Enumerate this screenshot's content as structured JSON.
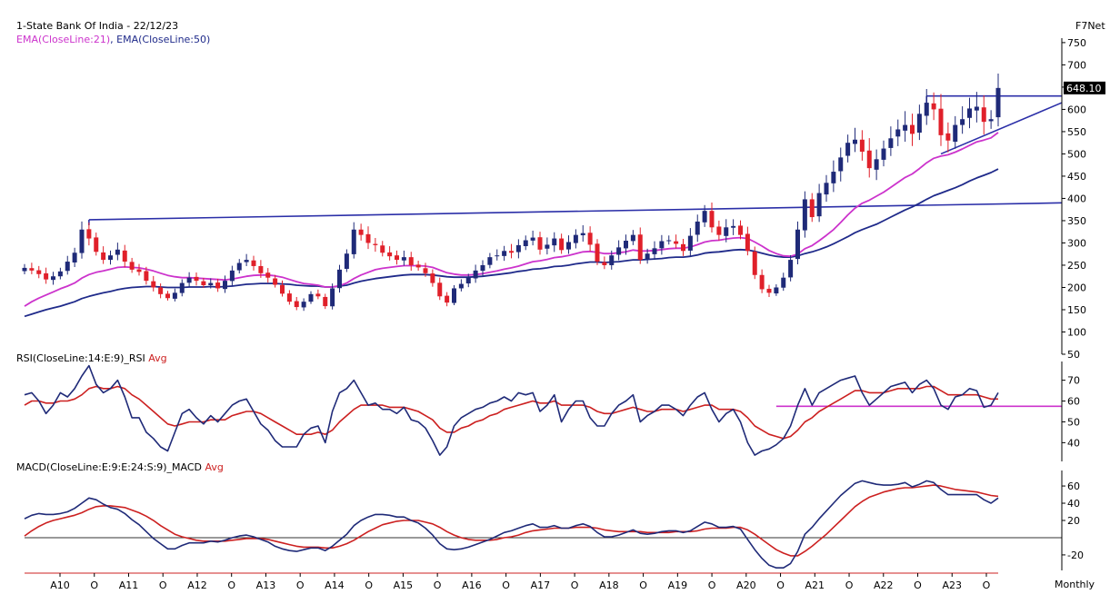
{
  "header": {
    "title": "1-State Bank Of India - 22/12/23",
    "indicator_ema21": "EMA(CloseLine:21)",
    "indicator_ema50": "EMA(CloseLine:50)",
    "separator": ", ",
    "brand": "F7Net",
    "rsi_label": "RSI(CloseLine:14:E:9)_RSI",
    "rsi_avg_label": "Avg",
    "macd_label": "MACD(CloseLine:E:9:E:24:S:9)_MACD",
    "macd_avg_label": "Avg",
    "timeframe": "Monthly"
  },
  "colors": {
    "up_candle": "#1f2a78",
    "down_candle": "#e0202a",
    "ema21": "#cc33cc",
    "ema50": "#1f2a8a",
    "trendline": "#2b2fa8",
    "rsi_line": "#1f2a78",
    "rsi_avg": "#cc2020",
    "macd_line": "#1f2a78",
    "macd_avg": "#cc2020",
    "ema21_label": "#cc33cc",
    "ema50_label": "#1f2a8a"
  },
  "chart_data": [
    {
      "type": "candlestick",
      "panel": "price",
      "y_ticks": [
        50,
        100,
        150,
        200,
        250,
        300,
        350,
        400,
        450,
        500,
        550,
        600,
        650,
        700,
        750
      ],
      "ylim": [
        50,
        760
      ],
      "last_price_label": "648.10",
      "x_tick_labels": [
        "A10",
        "O",
        "A11",
        "O",
        "A12",
        "O",
        "A13",
        "O",
        "A14",
        "O",
        "A15",
        "O",
        "A16",
        "O",
        "A17",
        "O",
        "A18",
        "O",
        "A19",
        "O",
        "A20",
        "O",
        "A21",
        "O",
        "A22",
        "O",
        "A23",
        "O"
      ],
      "close_series": [
        244,
        238,
        230,
        218,
        225,
        236,
        258,
        278,
        330,
        310,
        280,
        262,
        272,
        285,
        258,
        240,
        235,
        215,
        200,
        185,
        176,
        188,
        210,
        222,
        215,
        205,
        210,
        198,
        215,
        238,
        255,
        262,
        248,
        232,
        222,
        206,
        186,
        168,
        156,
        168,
        185,
        180,
        158,
        198,
        240,
        276,
        330,
        318,
        300,
        295,
        278,
        270,
        262,
        268,
        250,
        245,
        232,
        210,
        180,
        166,
        198,
        208,
        222,
        238,
        250,
        268,
        272,
        282,
        278,
        295,
        306,
        312,
        285,
        296,
        310,
        284,
        302,
        318,
        322,
        296,
        258,
        250,
        272,
        290,
        305,
        318,
        262,
        276,
        288,
        304,
        306,
        298,
        282,
        316,
        348,
        372,
        335,
        318,
        335,
        338,
        318,
        282,
        228,
        196,
        188,
        200,
        222,
        262,
        330,
        398,
        358,
        412,
        435,
        460,
        492,
        525,
        532,
        505,
        468,
        488,
        512,
        535,
        555,
        565,
        545,
        590,
        615,
        600,
        542,
        530,
        565,
        578,
        602,
        606,
        572,
        578,
        648.1
      ],
      "ema21": [
        158,
        168,
        176,
        183,
        190,
        197,
        203,
        210,
        221,
        229,
        234,
        237,
        241,
        245,
        246,
        245,
        244,
        241,
        237,
        232,
        227,
        224,
        222,
        222,
        221,
        220,
        219,
        218,
        217,
        219,
        222,
        225,
        227,
        228,
        228,
        226,
        223,
        218,
        213,
        209,
        207,
        205,
        201,
        201,
        204,
        210,
        220,
        228,
        234,
        240,
        243,
        245,
        247,
        249,
        249,
        249,
        248,
        245,
        239,
        233,
        230,
        228,
        228,
        229,
        231,
        234,
        237,
        241,
        244,
        248,
        253,
        258,
        260,
        263,
        267,
        269,
        272,
        276,
        280,
        281,
        279,
        276,
        276,
        278,
        280,
        284,
        282,
        282,
        283,
        285,
        287,
        288,
        288,
        291,
        296,
        302,
        305,
        306,
        309,
        311,
        312,
        310,
        302,
        293,
        283,
        276,
        271,
        270,
        275,
        287,
        294,
        305,
        317,
        330,
        346,
        363,
        378,
        389,
        396,
        405,
        414,
        425,
        436,
        447,
        455,
        467,
        480,
        490,
        495,
        498,
        504,
        511,
        519,
        527,
        531,
        536,
        548
      ],
      "ema50": [
        135,
        140,
        145,
        150,
        154,
        158,
        163,
        168,
        175,
        180,
        184,
        188,
        191,
        195,
        198,
        200,
        201,
        202,
        202,
        201,
        200,
        200,
        200,
        201,
        201,
        201,
        202,
        201,
        202,
        203,
        205,
        207,
        208,
        209,
        209,
        209,
        208,
        207,
        205,
        204,
        203,
        203,
        201,
        201,
        203,
        205,
        210,
        214,
        217,
        220,
        222,
        224,
        226,
        228,
        229,
        229,
        229,
        228,
        226,
        224,
        223,
        223,
        223,
        224,
        225,
        227,
        229,
        231,
        233,
        236,
        238,
        241,
        242,
        244,
        247,
        248,
        250,
        253,
        255,
        257,
        257,
        256,
        257,
        258,
        260,
        262,
        262,
        263,
        264,
        265,
        267,
        268,
        268,
        270,
        273,
        277,
        279,
        280,
        282,
        284,
        285,
        284,
        281,
        277,
        273,
        270,
        268,
        268,
        271,
        276,
        280,
        285,
        291,
        298,
        306,
        314,
        323,
        330,
        336,
        342,
        350,
        358,
        366,
        374,
        381,
        389,
        398,
        406,
        412,
        418,
        424,
        431,
        439,
        446,
        452,
        458,
        466
      ],
      "horizontal_resistance": 630,
      "support_trendline": [
        [
          128,
          500
        ],
        [
          142,
          615
        ]
      ],
      "long_trendline": [
        [
          9,
          352
        ],
        [
          142,
          390
        ]
      ]
    },
    {
      "type": "line",
      "panel": "rsi",
      "y_ticks": [
        40,
        50,
        60,
        70
      ],
      "ylim": [
        31,
        79
      ],
      "series": [
        {
          "name": "RSI(CloseLine:14:E:9)_RSI",
          "values": [
            63,
            64,
            60,
            54,
            58,
            64,
            62,
            66,
            72,
            77,
            68,
            64,
            66,
            70,
            62,
            52,
            52,
            45,
            42,
            38,
            36,
            45,
            54,
            56,
            52,
            49,
            53,
            50,
            54,
            58,
            60,
            61,
            55,
            49,
            46,
            41,
            38,
            38,
            38,
            44,
            47,
            48,
            40,
            55,
            64,
            66,
            70,
            64,
            58,
            59,
            56,
            56,
            54,
            57,
            51,
            50,
            47,
            41,
            34,
            38,
            48,
            52,
            54,
            56,
            57,
            59,
            60,
            62,
            60,
            64,
            63,
            64,
            55,
            58,
            63,
            50,
            56,
            60,
            60,
            52,
            48,
            48,
            54,
            58,
            60,
            63,
            50,
            53,
            55,
            58,
            58,
            56,
            53,
            58,
            62,
            64,
            56,
            50,
            54,
            56,
            50,
            40,
            34,
            36,
            37,
            39,
            42,
            48,
            58,
            66,
            58,
            64,
            66,
            68,
            70,
            71,
            72,
            64,
            58,
            61,
            64,
            67,
            68,
            69,
            64,
            68,
            70,
            66,
            58,
            56,
            62,
            63,
            66,
            65,
            57,
            58,
            64
          ]
        },
        {
          "name": "Avg",
          "values": [
            58,
            60,
            60,
            59,
            59,
            60,
            60,
            61,
            63,
            66,
            67,
            66,
            66,
            67,
            66,
            63,
            61,
            58,
            55,
            52,
            49,
            48,
            49,
            50,
            50,
            50,
            51,
            51,
            51,
            53,
            54,
            55,
            55,
            54,
            52,
            50,
            48,
            46,
            44,
            44,
            44,
            45,
            44,
            46,
            50,
            53,
            56,
            58,
            58,
            58,
            58,
            57,
            57,
            57,
            56,
            55,
            53,
            51,
            47,
            45,
            45,
            47,
            48,
            50,
            51,
            53,
            54,
            56,
            57,
            58,
            59,
            60,
            59,
            59,
            60,
            58,
            58,
            58,
            58,
            57,
            55,
            54,
            54,
            55,
            56,
            57,
            56,
            55,
            55,
            56,
            56,
            56,
            55,
            56,
            57,
            58,
            58,
            56,
            56,
            56,
            55,
            52,
            48,
            46,
            44,
            43,
            42,
            43,
            46,
            50,
            52,
            55,
            57,
            59,
            61,
            63,
            65,
            65,
            64,
            64,
            64,
            65,
            66,
            66,
            66,
            66,
            67,
            67,
            65,
            63,
            63,
            63,
            63,
            63,
            62,
            61,
            61
          ]
        }
      ],
      "horizontal_level": 57.5,
      "horizontal_level_start_index": 105
    },
    {
      "type": "line",
      "panel": "macd",
      "y_ticks": [
        -20,
        20,
        40,
        60
      ],
      "ylim": [
        -38,
        78
      ],
      "zero_line": 0,
      "series": [
        {
          "name": "MACD(CloseLine:E:9:E:24:S:9)_MACD",
          "values": [
            22,
            26,
            28,
            27,
            27,
            28,
            30,
            34,
            40,
            46,
            44,
            39,
            35,
            33,
            28,
            21,
            15,
            7,
            -1,
            -7,
            -13,
            -13,
            -9,
            -6,
            -6,
            -6,
            -4,
            -5,
            -3,
            0,
            2,
            3,
            1,
            -2,
            -5,
            -10,
            -13,
            -15,
            -16,
            -14,
            -12,
            -12,
            -15,
            -10,
            -3,
            4,
            14,
            20,
            24,
            27,
            27,
            26,
            24,
            24,
            20,
            17,
            11,
            3,
            -7,
            -13,
            -14,
            -13,
            -11,
            -8,
            -5,
            -2,
            2,
            6,
            8,
            11,
            14,
            16,
            12,
            12,
            14,
            11,
            11,
            14,
            16,
            13,
            6,
            1,
            1,
            3,
            6,
            9,
            5,
            4,
            5,
            7,
            8,
            8,
            6,
            8,
            13,
            18,
            16,
            12,
            12,
            13,
            10,
            -2,
            -14,
            -24,
            -32,
            -35,
            -35,
            -30,
            -16,
            4,
            12,
            22,
            31,
            40,
            49,
            56,
            63,
            66,
            64,
            62,
            61,
            61,
            62,
            64,
            59,
            62,
            66,
            64,
            56,
            50,
            50,
            50,
            50,
            50,
            44,
            40,
            46
          ]
        },
        {
          "name": "Avg",
          "values": [
            2,
            8,
            13,
            17,
            20,
            22,
            24,
            26,
            29,
            33,
            36,
            37,
            37,
            36,
            35,
            32,
            29,
            25,
            20,
            14,
            9,
            4,
            1,
            -1,
            -3,
            -4,
            -4,
            -4,
            -4,
            -3,
            -2,
            -1,
            -1,
            -1,
            -2,
            -4,
            -6,
            -8,
            -10,
            -11,
            -11,
            -11,
            -12,
            -12,
            -10,
            -7,
            -3,
            2,
            7,
            11,
            15,
            17,
            19,
            20,
            20,
            20,
            18,
            16,
            12,
            7,
            3,
            0,
            -2,
            -3,
            -3,
            -3,
            -2,
            0,
            1,
            3,
            6,
            8,
            9,
            10,
            11,
            11,
            11,
            12,
            12,
            12,
            11,
            9,
            8,
            7,
            7,
            7,
            7,
            6,
            6,
            6,
            6,
            7,
            7,
            7,
            8,
            10,
            11,
            11,
            11,
            12,
            12,
            9,
            4,
            -2,
            -8,
            -14,
            -18,
            -21,
            -21,
            -16,
            -10,
            -3,
            4,
            12,
            20,
            28,
            36,
            42,
            47,
            50,
            53,
            55,
            57,
            58,
            58,
            59,
            60,
            61,
            60,
            58,
            56,
            55,
            54,
            53,
            51,
            49,
            48
          ]
        }
      ]
    }
  ]
}
